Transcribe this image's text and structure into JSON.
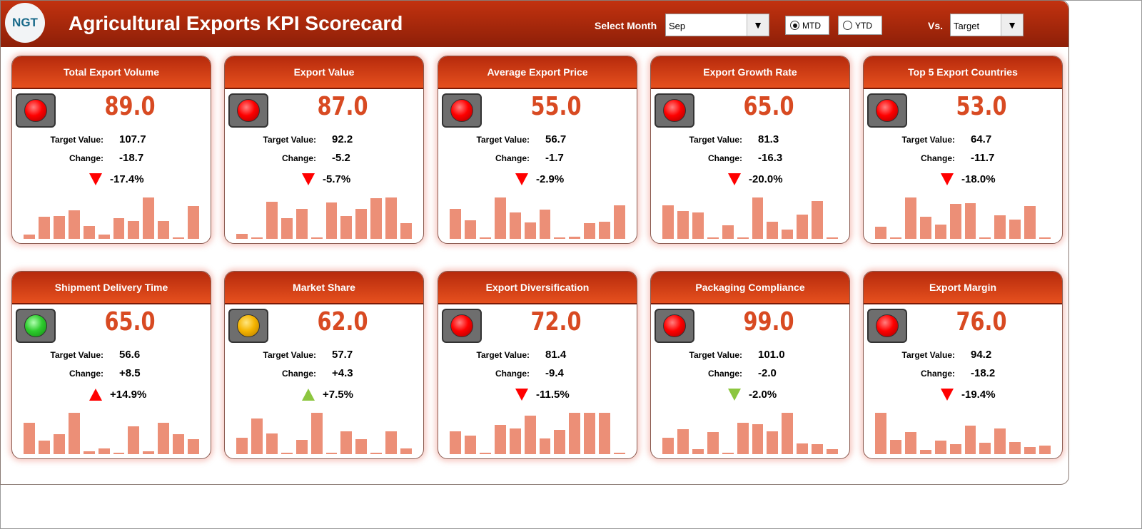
{
  "header": {
    "logo_text": "NGT",
    "title": "Agricultural Exports KPI Scorecard",
    "select_month_label": "Select Month",
    "month": "Sep",
    "mtd_label": "MTD",
    "ytd_label": "YTD",
    "mode": "MTD",
    "vs_label": "Vs.",
    "vs_value": "Target"
  },
  "colors": {
    "red": "#ff0000",
    "green": "#8cc63f",
    "amber": "#f5b400",
    "value": "#d84a22",
    "bar": "#ec8f77"
  },
  "cards": [
    {
      "title": "Total Export Volume",
      "value": "89.0",
      "status": "red",
      "target_label": "Target Value:",
      "target": "107.7",
      "change_label": "Change:",
      "change": "-18.7",
      "pct": "-17.4%",
      "arrow": "down",
      "arrow_color": "#ff0000",
      "bars": [
        6,
        30,
        31,
        39,
        18,
        6,
        29,
        25,
        57,
        25,
        1,
        45
      ]
    },
    {
      "title": "Export Value",
      "value": "87.0",
      "status": "red",
      "target_label": "Target Value:",
      "target": "92.2",
      "change_label": "Change:",
      "change": "-5.2",
      "pct": "-5.7%",
      "arrow": "down",
      "arrow_color": "#ff0000",
      "bars": [
        7,
        2,
        50,
        28,
        41,
        1,
        49,
        31,
        41,
        55,
        56,
        21
      ]
    },
    {
      "title": "Average Export Price",
      "value": "55.0",
      "status": "red",
      "target_label": "Target Value:",
      "target": "56.7",
      "change_label": "Change:",
      "change": "-1.7",
      "pct": "-2.9%",
      "arrow": "down",
      "arrow_color": "#ff0000",
      "bars": [
        41,
        26,
        1,
        57,
        36,
        23,
        40,
        1,
        3,
        22,
        24,
        46
      ]
    },
    {
      "title": "Export Growth Rate",
      "value": "65.0",
      "status": "red",
      "target_label": "Target Value:",
      "target": "81.3",
      "change_label": "Change:",
      "change": "-16.3",
      "pct": "-20.0%",
      "arrow": "down",
      "arrow_color": "#ff0000",
      "bars": [
        45,
        37,
        35,
        1,
        18,
        1,
        55,
        23,
        12,
        32,
        50,
        2
      ]
    },
    {
      "title": "Top 5 Export Countries",
      "value": "53.0",
      "status": "red",
      "target_label": "Target Value:",
      "target": "64.7",
      "change_label": "Change:",
      "change": "-11.7",
      "pct": "-18.0%",
      "arrow": "down",
      "arrow_color": "#ff0000",
      "bars": [
        17,
        1,
        57,
        30,
        20,
        48,
        49,
        1,
        32,
        27,
        45,
        1
      ]
    },
    {
      "title": "Shipment Delivery Time",
      "value": "65.0",
      "status": "green",
      "target_label": "Target Value:",
      "target": "56.6",
      "change_label": "Change:",
      "change": "+8.5",
      "pct": "+14.9%",
      "arrow": "up",
      "arrow_color": "#ff0000",
      "bars": [
        42,
        18,
        27,
        55,
        4,
        8,
        1,
        37,
        4,
        42,
        27,
        20
      ]
    },
    {
      "title": "Market Share",
      "value": "62.0",
      "status": "amber",
      "target_label": "Target Value:",
      "target": "57.7",
      "change_label": "Change:",
      "change": "+4.3",
      "pct": "+7.5%",
      "arrow": "up",
      "arrow_color": "#8cc63f",
      "bars": [
        23,
        49,
        29,
        1,
        20,
        57,
        1,
        31,
        21,
        1,
        31,
        8
      ]
    },
    {
      "title": "Export Diversification",
      "value": "72.0",
      "status": "red",
      "target_label": "Target Value:",
      "target": "81.4",
      "change_label": "Change:",
      "change": "-9.4",
      "pct": "-11.5%",
      "arrow": "down",
      "arrow_color": "#ff0000",
      "bars": [
        31,
        25,
        1,
        40,
        35,
        52,
        21,
        33,
        56,
        56,
        56,
        1
      ]
    },
    {
      "title": "Packaging Compliance",
      "value": "99.0",
      "status": "red",
      "target_label": "Target Value:",
      "target": "101.0",
      "change_label": "Change:",
      "change": "-2.0",
      "pct": "-2.0%",
      "arrow": "down",
      "arrow_color": "#8cc63f",
      "bars": [
        22,
        33,
        7,
        29,
        1,
        42,
        40,
        30,
        55,
        14,
        13,
        7
      ]
    },
    {
      "title": "Export Margin",
      "value": "76.0",
      "status": "red",
      "target_label": "Target Value:",
      "target": "94.2",
      "change_label": "Change:",
      "change": "-18.2",
      "pct": "-19.4%",
      "arrow": "down",
      "arrow_color": "#ff0000",
      "bars": [
        58,
        20,
        31,
        6,
        19,
        14,
        40,
        16,
        36,
        17,
        10,
        12
      ]
    }
  ]
}
